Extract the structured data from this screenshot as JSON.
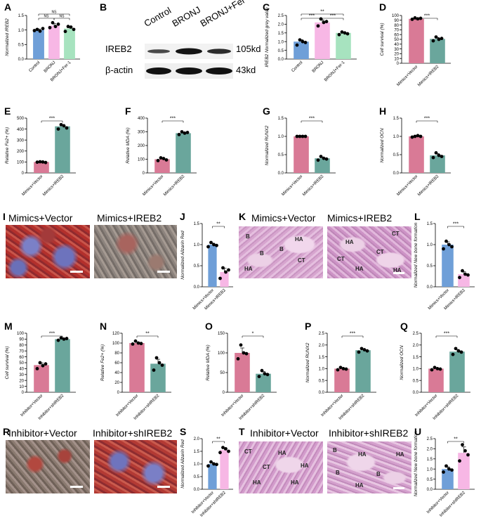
{
  "colors": {
    "control": "#6f9fd8",
    "bronj": "#f7b7e5",
    "fer1": "#a7e3bf",
    "mimics_vector": "#d97a96",
    "mimics_ireb2": "#6aa69c",
    "inh_vector": "#d97a96",
    "inh_shireb2": "#6aa69c",
    "vector_blue": "#6f9fd8",
    "ireb2_pink": "#f7b7e5"
  },
  "blot": {
    "panel": "B",
    "lanes": [
      "Control",
      "BRONJ",
      "BRONJ+Fer-1"
    ],
    "rows": [
      {
        "protein": "IREB2",
        "size": "105kd"
      },
      {
        "protein": "β-actin",
        "size": "43kd"
      }
    ]
  },
  "photos": {
    "I": {
      "left_title": "Mimics+Vector",
      "right_title": "Mimics+IREB2"
    },
    "K": {
      "left_title": "Mimics+Vector",
      "right_title": "Mimics+IREB2",
      "left_labels": [
        "B",
        "B",
        "HA",
        "B",
        "CT",
        "HA"
      ],
      "right_labels": [
        "CT",
        "HA",
        "CT",
        "CT",
        "HA",
        "HA"
      ]
    },
    "R": {
      "left_title": "Inhibitor+Vector",
      "right_title": "Inhibitor+shIREB2"
    },
    "T": {
      "left_title": "Inhibitor+Vector",
      "right_title": "Inhibitor+shIREB2",
      "left_labels": [
        "CT",
        "HA",
        "CT",
        "HA",
        "HA",
        "HA"
      ],
      "right_labels": [
        "B",
        "HA",
        "HA",
        "B",
        "B",
        "HA"
      ]
    }
  },
  "chart_data": [
    {
      "panel": "A",
      "type": "bar",
      "ylabel": "Normalized IREB2",
      "ylim": [
        0,
        1.5
      ],
      "yticks": [
        0,
        0.5,
        1.0,
        1.5
      ],
      "categories": [
        "Control",
        "BRONJ",
        "BRONJ+Fer-1"
      ],
      "values": [
        1.0,
        1.15,
        1.05
      ],
      "points": [
        [
          0.98,
          1.02,
          0.96,
          1.05
        ],
        [
          1.08,
          1.25,
          1.12,
          1.2
        ],
        [
          0.95,
          1.12,
          1.1,
          1.02
        ]
      ],
      "colors": [
        "#6f9fd8",
        "#f7b7e5",
        "#a7e3bf"
      ],
      "sig": [
        {
          "a": 0,
          "b": 1,
          "label": "NS",
          "level": 1
        },
        {
          "a": 1,
          "b": 2,
          "label": "NS",
          "level": 1
        },
        {
          "a": 0,
          "b": 2,
          "label": "NS",
          "level": 2
        }
      ]
    },
    {
      "panel": "C",
      "type": "bar",
      "ylabel": "IREB2 Normalized grey value",
      "ylim": [
        0,
        2.5
      ],
      "yticks": [
        0,
        0.5,
        1.0,
        1.5,
        2.0,
        2.5
      ],
      "categories": [
        "Control",
        "BRONJ",
        "BRONJ+Fer-1"
      ],
      "values": [
        1.0,
        2.1,
        1.5
      ],
      "points": [
        [
          0.8,
          1.1,
          1.0,
          0.95
        ],
        [
          1.9,
          2.3,
          2.1,
          2.15
        ],
        [
          1.4,
          1.55,
          1.5,
          1.45
        ]
      ],
      "colors": [
        "#6f9fd8",
        "#f7b7e5",
        "#a7e3bf"
      ],
      "sig": [
        {
          "a": 0,
          "b": 1,
          "label": "***",
          "level": 1
        },
        {
          "a": 1,
          "b": 2,
          "label": "***",
          "level": 1
        },
        {
          "a": 0,
          "b": 2,
          "label": "**",
          "level": 2
        }
      ]
    },
    {
      "panel": "D",
      "type": "bar",
      "ylabel": "Cell survival (%)",
      "ylim": [
        0,
        100
      ],
      "yticks": [
        0,
        10,
        20,
        30,
        40,
        50,
        60,
        70,
        80,
        90,
        100
      ],
      "categories": [
        "Mimics+Vector",
        "Mimics+IREB2"
      ],
      "values": [
        93,
        51
      ],
      "points": [
        [
          92,
          95,
          93,
          94
        ],
        [
          47,
          55,
          50,
          52
        ]
      ],
      "colors": [
        "#d97a96",
        "#6aa69c"
      ],
      "sig": [
        {
          "a": 0,
          "b": 1,
          "label": "***",
          "level": 1
        }
      ]
    },
    {
      "panel": "E",
      "type": "bar",
      "ylabel": "Relative Fe2+ (%)",
      "ylim": [
        0,
        500
      ],
      "yticks": [
        0,
        100,
        200,
        300,
        400,
        500
      ],
      "categories": [
        "Mimics+Vector",
        "Mimics+IREB2"
      ],
      "values": [
        100,
        425
      ],
      "points": [
        [
          98,
          102,
          100,
          95
        ],
        [
          400,
          440,
          430,
          410
        ]
      ],
      "colors": [
        "#d97a96",
        "#6aa69c"
      ],
      "sig": [
        {
          "a": 0,
          "b": 1,
          "label": "***",
          "level": 1
        }
      ]
    },
    {
      "panel": "F",
      "type": "bar",
      "ylabel": "Relative MDA (%)",
      "ylim": [
        0,
        400
      ],
      "yticks": [
        0,
        100,
        200,
        300,
        400
      ],
      "categories": [
        "Mimics+Vector",
        "Mimics+IREB2"
      ],
      "values": [
        100,
        290
      ],
      "points": [
        [
          90,
          110,
          105,
          95
        ],
        [
          280,
          300,
          290,
          295
        ]
      ],
      "colors": [
        "#d97a96",
        "#6aa69c"
      ],
      "sig": [
        {
          "a": 0,
          "b": 1,
          "label": "***",
          "level": 1
        }
      ]
    },
    {
      "panel": "G",
      "type": "bar",
      "ylabel": "Normalized RUNX2",
      "ylim": [
        0,
        1.5
      ],
      "yticks": [
        0,
        0.5,
        1.0,
        1.5
      ],
      "categories": [
        "Mimics+Vector",
        "Mimics+IREB2"
      ],
      "values": [
        1.0,
        0.4
      ],
      "points": [
        [
          1.0,
          1.0,
          1.0,
          1.0
        ],
        [
          0.35,
          0.45,
          0.4,
          0.38
        ]
      ],
      "colors": [
        "#d97a96",
        "#6aa69c"
      ],
      "sig": [
        {
          "a": 0,
          "b": 1,
          "label": "***",
          "level": 1
        }
      ]
    },
    {
      "panel": "H",
      "type": "bar",
      "ylabel": "Normalized OCN",
      "ylim": [
        0,
        1.5
      ],
      "yticks": [
        0,
        0.5,
        1.0,
        1.5
      ],
      "categories": [
        "Mimics+Vector",
        "Mimics+IREB2"
      ],
      "values": [
        1.0,
        0.48
      ],
      "points": [
        [
          0.98,
          1.0,
          1.02,
          1.0
        ],
        [
          0.42,
          0.55,
          0.48,
          0.45
        ]
      ],
      "colors": [
        "#d97a96",
        "#6aa69c"
      ],
      "sig": [
        {
          "a": 0,
          "b": 1,
          "label": "***",
          "level": 1
        }
      ]
    },
    {
      "panel": "J",
      "type": "bar",
      "ylabel": "Normalized Alizarin Red",
      "ylim": [
        0,
        1.5
      ],
      "yticks": [
        0,
        0.5,
        1.0,
        1.5
      ],
      "categories": [
        "Mimics+Vector",
        "Mimics+IREB2"
      ],
      "values": [
        1.0,
        0.35
      ],
      "points": [
        [
          0.95,
          1.05,
          1.0,
          0.98
        ],
        [
          0.2,
          0.45,
          0.35,
          0.4
        ]
      ],
      "colors": [
        "#6f9fd8",
        "#f7b7e5"
      ],
      "sig": [
        {
          "a": 0,
          "b": 1,
          "label": "**",
          "level": 1
        }
      ]
    },
    {
      "panel": "L",
      "type": "bar",
      "ylabel": "Normalized New bone formation",
      "ylim": [
        0,
        1.5
      ],
      "yticks": [
        0,
        0.5,
        1.0,
        1.5
      ],
      "categories": [
        "Mimics+Vector",
        "Mimics+IREB2"
      ],
      "values": [
        1.0,
        0.3
      ],
      "points": [
        [
          0.9,
          1.08,
          1.0,
          0.95
        ],
        [
          0.22,
          0.38,
          0.3,
          0.28
        ]
      ],
      "colors": [
        "#6f9fd8",
        "#f7b7e5"
      ],
      "sig": [
        {
          "a": 0,
          "b": 1,
          "label": "***",
          "level": 1
        }
      ]
    },
    {
      "panel": "M",
      "type": "bar",
      "ylabel": "Cell survival (%)",
      "ylim": [
        0,
        100
      ],
      "yticks": [
        0,
        10,
        20,
        30,
        40,
        50,
        60,
        70,
        80,
        90,
        100
      ],
      "categories": [
        "Inhibitor+Vector",
        "Inhibitor+shIREB2"
      ],
      "values": [
        46,
        90
      ],
      "points": [
        [
          40,
          50,
          45,
          48
        ],
        [
          88,
          92,
          90,
          91
        ]
      ],
      "colors": [
        "#d97a96",
        "#6aa69c"
      ],
      "sig": [
        {
          "a": 0,
          "b": 1,
          "label": "***",
          "level": 1
        }
      ]
    },
    {
      "panel": "N",
      "type": "bar",
      "ylabel": "Relative Fe2+ (%)",
      "ylim": [
        0,
        120
      ],
      "yticks": [
        0,
        20,
        40,
        60,
        80,
        100,
        120
      ],
      "categories": [
        "Inhibitor+Vector",
        "Inhibitor+shIREB2"
      ],
      "values": [
        100,
        58
      ],
      "points": [
        [
          98,
          104,
          100,
          99
        ],
        [
          45,
          70,
          60,
          55
        ]
      ],
      "colors": [
        "#d97a96",
        "#6aa69c"
      ],
      "sig": [
        {
          "a": 0,
          "b": 1,
          "label": "**",
          "level": 1
        }
      ]
    },
    {
      "panel": "O",
      "type": "bar",
      "ylabel": "Relative MDA (%)",
      "ylim": [
        0,
        150
      ],
      "yticks": [
        0,
        50,
        100,
        150
      ],
      "categories": [
        "Inhibitor+Vector",
        "Inhibitor+shIREB2"
      ],
      "values": [
        100,
        47
      ],
      "points": [
        [
          85,
          120,
          100,
          98
        ],
        [
          40,
          55,
          47,
          45
        ]
      ],
      "colors": [
        "#d97a96",
        "#6aa69c"
      ],
      "sig": [
        {
          "a": 0,
          "b": 1,
          "label": "*",
          "level": 1
        }
      ]
    },
    {
      "panel": "P",
      "type": "bar",
      "ylabel": "Normalized RUNX2",
      "ylim": [
        0,
        2.5
      ],
      "yticks": [
        0,
        0.5,
        1.0,
        1.5,
        2.0,
        2.5
      ],
      "categories": [
        "Inhibitor+Vector",
        "Inhibitor+shIREB2"
      ],
      "values": [
        1.0,
        1.78
      ],
      "points": [
        [
          0.95,
          1.05,
          1.0,
          0.98
        ],
        [
          1.7,
          1.85,
          1.8,
          1.75
        ]
      ],
      "colors": [
        "#d97a96",
        "#6aa69c"
      ],
      "sig": [
        {
          "a": 0,
          "b": 1,
          "label": "***",
          "level": 1
        }
      ]
    },
    {
      "panel": "Q",
      "type": "bar",
      "ylabel": "Normalized OCN",
      "ylim": [
        0,
        2.5
      ],
      "yticks": [
        0,
        0.5,
        1.0,
        1.5,
        2.0,
        2.5
      ],
      "categories": [
        "Inhibitor+Vector",
        "Inhibitor+shIREB2"
      ],
      "values": [
        1.0,
        1.72
      ],
      "points": [
        [
          0.95,
          1.05,
          1.0,
          0.98
        ],
        [
          1.6,
          1.85,
          1.75,
          1.7
        ]
      ],
      "colors": [
        "#d97a96",
        "#6aa69c"
      ],
      "sig": [
        {
          "a": 0,
          "b": 1,
          "label": "***",
          "level": 1
        }
      ]
    },
    {
      "panel": "S",
      "type": "bar",
      "ylabel": "Normalized Alizarin Red",
      "ylim": [
        0,
        2.0
      ],
      "yticks": [
        0,
        0.5,
        1.0,
        1.5,
        2.0
      ],
      "categories": [
        "Inhibitor+Vector",
        "Inhibitor+shIREB2"
      ],
      "values": [
        1.0,
        1.55
      ],
      "points": [
        [
          0.92,
          1.08,
          1.0,
          0.98
        ],
        [
          1.45,
          1.65,
          1.6,
          1.5
        ]
      ],
      "colors": [
        "#6f9fd8",
        "#f7b7e5"
      ],
      "sig": [
        {
          "a": 0,
          "b": 1,
          "label": "**",
          "level": 1
        }
      ]
    },
    {
      "panel": "U",
      "type": "bar",
      "ylabel": "Normalized New bone formation",
      "ylim": [
        0,
        2.5
      ],
      "yticks": [
        0,
        0.5,
        1.0,
        1.5,
        2.0,
        2.5
      ],
      "categories": [
        "Inhibitor+Vector",
        "Inhibitor+shIREB2"
      ],
      "values": [
        1.0,
        1.8
      ],
      "points": [
        [
          0.85,
          1.15,
          1.0,
          0.95
        ],
        [
          1.4,
          2.2,
          1.9,
          1.7
        ]
      ],
      "colors": [
        "#6f9fd8",
        "#f7b7e5"
      ],
      "sig": [
        {
          "a": 0,
          "b": 1,
          "label": "**",
          "level": 1
        }
      ]
    }
  ]
}
